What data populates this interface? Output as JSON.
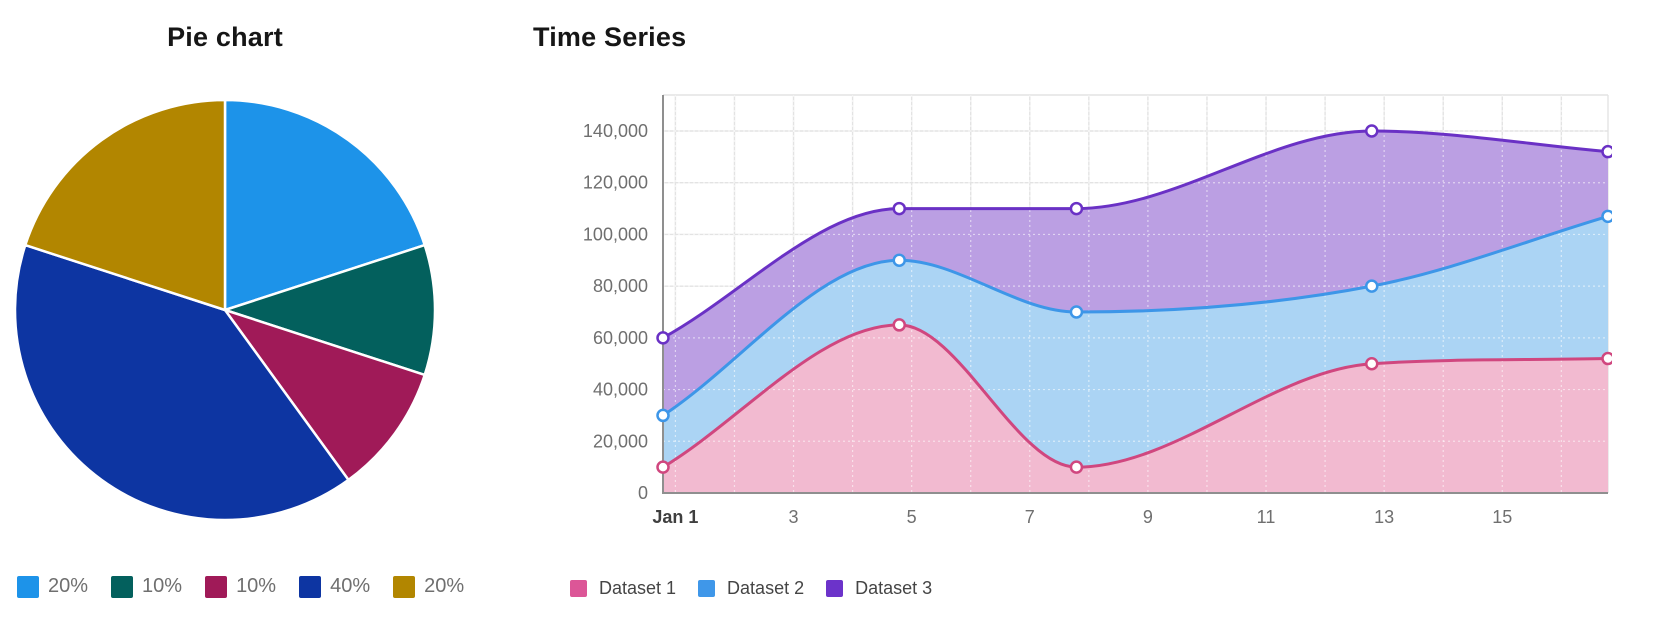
{
  "chart_data": [
    {
      "type": "pie",
      "title": "Pie chart",
      "labels": [
        "20%",
        "10%",
        "10%",
        "40%",
        "20%"
      ],
      "values": [
        20,
        10,
        10,
        40,
        20
      ],
      "colors": [
        "#1d93e9",
        "#03605d",
        "#a01a58",
        "#0d35a2",
        "#b28600"
      ],
      "start_angle_deg": 0,
      "direction": "clockwise",
      "legend_position": "bottom"
    },
    {
      "type": "area",
      "title": "Time Series",
      "x": [
        1,
        5,
        8,
        13,
        17
      ],
      "x_axis_range": [
        1,
        17
      ],
      "x_tick_days": [
        1,
        3,
        5,
        7,
        9,
        11,
        13,
        15
      ],
      "x_tick_labels": [
        "Jan 1",
        "3",
        "5",
        "7",
        "9",
        "11",
        "13",
        "15"
      ],
      "y_ticks": [
        0,
        20000,
        40000,
        60000,
        80000,
        100000,
        120000,
        140000
      ],
      "y_tick_labels": [
        "0",
        "20,000",
        "40,000",
        "60,000",
        "80,000",
        "100,000",
        "120,000",
        "140,000"
      ],
      "ylim": [
        0,
        150000
      ],
      "grid": true,
      "curve": "monotone",
      "legend_position": "bottom",
      "series": [
        {
          "name": "Dataset 1",
          "values": [
            10000,
            65000,
            10000,
            50000,
            52000
          ],
          "line_color": "#d0477f",
          "fill_color": "#f2bad0",
          "swatch_color": "#dc5697"
        },
        {
          "name": "Dataset 2",
          "values": [
            30000,
            90000,
            70000,
            80000,
            107000
          ],
          "line_color": "#3d96e8",
          "fill_color": "#abd4f4",
          "swatch_color": "#3f97e9"
        },
        {
          "name": "Dataset 3",
          "values": [
            60000,
            110000,
            110000,
            140000,
            132000
          ],
          "line_color": "#6a31c5",
          "fill_color": "#bb9fe3",
          "swatch_color": "#6c33ca"
        }
      ]
    }
  ],
  "style": {
    "grid_color": "#e3e3e3",
    "axis_color": "#8f8f8f",
    "tick_label_color": "#6f6f6f",
    "first_tick_label_color": "#3f3f3f",
    "title_color": "#161616",
    "background": "#ffffff"
  }
}
